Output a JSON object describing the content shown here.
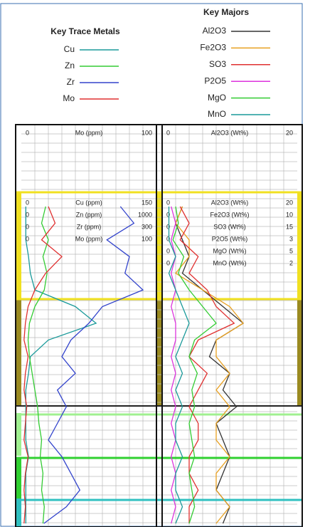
{
  "chart_data": [
    {
      "type": "line",
      "legend_title": "Key Trace Metals",
      "top_scale": {
        "name": "Mo (ppm)",
        "xlim": [
          0,
          100
        ],
        "color": "#e03030"
      },
      "series": [
        {
          "name": "Cu",
          "axis_label": "Cu (ppm)",
          "xlim": [
            0,
            150
          ],
          "color": "#1a9a9a",
          "values": [
            5,
            5,
            5,
            8,
            10,
            15,
            60,
            83,
            30,
            10,
            8,
            5,
            5,
            5,
            5,
            8,
            5,
            5,
            5,
            5
          ]
        },
        {
          "name": "Zn",
          "axis_label": "Zn (ppm)",
          "xlim": [
            0,
            1000
          ],
          "color": "#33cc33",
          "values": [
            180,
            150,
            200,
            160,
            190,
            170,
            100,
            60,
            50,
            60,
            80,
            100,
            120,
            130,
            150,
            140,
            160,
            150,
            170,
            160
          ]
        },
        {
          "name": "Zr",
          "axis_label": "Zr (ppm)",
          "xlim": [
            0,
            300
          ],
          "color": "#3344cc",
          "values": [
            220,
            250,
            190,
            240,
            230,
            270,
            180,
            150,
            110,
            90,
            120,
            80,
            100,
            80,
            60,
            90,
            110,
            130,
            100,
            50
          ]
        },
        {
          "name": "Mo",
          "axis_label": "Mo (ppm)",
          "xlim": [
            0,
            100
          ],
          "color": "#e03030",
          "values": [
            20,
            25,
            15,
            30,
            18,
            10,
            5,
            3,
            2,
            5,
            3,
            2,
            4,
            3,
            2,
            5,
            3,
            2,
            3,
            2
          ]
        }
      ]
    },
    {
      "type": "line",
      "legend_title": "Key Majors",
      "top_scale": {
        "name": "Al2O3 (Wt%)",
        "xlim": [
          0,
          20
        ],
        "color": "#cc6600"
      },
      "series": [
        {
          "name": "Al2O3",
          "axis_label": "Al2O3 (Wt%)",
          "xlim": [
            0,
            20
          ],
          "color": "#333333",
          "values": [
            3,
            2,
            3,
            4,
            3,
            6,
            9,
            12,
            8,
            7,
            10,
            9,
            11,
            8,
            9,
            10,
            9,
            8,
            10,
            9
          ]
        },
        {
          "name": "Fe2O3",
          "axis_label": "Fe2O3 (Wt%)",
          "xlim": [
            0,
            10
          ],
          "color": "#e8a020",
          "values": [
            1.5,
            1,
            2,
            2,
            1,
            3,
            5,
            6,
            4,
            4,
            5,
            4,
            5,
            4,
            4,
            5,
            4,
            4,
            5,
            4
          ]
        },
        {
          "name": "SO3",
          "axis_label": "SO3 (Wt%)",
          "xlim": [
            0,
            15
          ],
          "color": "#e03030",
          "values": [
            2,
            3,
            2,
            4,
            3,
            5,
            6,
            8,
            4,
            3,
            5,
            4,
            3,
            4,
            4,
            3,
            3,
            4,
            3,
            3
          ]
        },
        {
          "name": "P2O5",
          "axis_label": "P2O5 (Wt%)",
          "xlim": [
            0,
            3
          ],
          "color": "#dd33dd",
          "values": [
            0.2,
            0.3,
            0.2,
            0.3,
            0.2,
            0.3,
            0.2,
            0.3,
            0.3,
            0.2,
            0.3,
            0.2,
            0.3,
            0.2,
            0.3,
            0.2,
            0.3,
            0.2,
            0.3,
            0.2
          ]
        },
        {
          "name": "MgO",
          "axis_label": "MgO (Wt%)",
          "xlim": [
            0,
            5
          ],
          "color": "#33cc33",
          "values": [
            0.5,
            0.6,
            0.4,
            0.8,
            0.6,
            1,
            1.5,
            2,
            1.2,
            1,
            1.3,
            1.1,
            1.2,
            1,
            1.1,
            1.2,
            1,
            1.1,
            1.2,
            1
          ]
        },
        {
          "name": "MnO",
          "axis_label": "MnO (Wt%)",
          "xlim": [
            0,
            2
          ],
          "color": "#1a9a9a",
          "values": [
            0.1,
            0.1,
            0.1,
            0.2,
            0.1,
            0.2,
            0.3,
            0.4,
            0.3,
            0.2,
            0.3,
            0.2,
            0.3,
            0.2,
            0.2,
            0.3,
            0.2,
            0.2,
            0.3,
            0.2
          ]
        }
      ]
    }
  ]
}
